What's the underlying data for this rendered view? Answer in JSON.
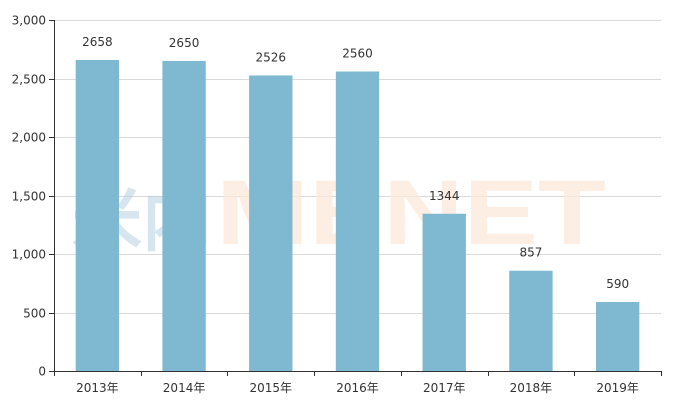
{
  "chart_data": {
    "type": "bar",
    "categories": [
      "2013年",
      "2014年",
      "2015年",
      "2016年",
      "2017年",
      "2018年",
      "2019年"
    ],
    "values": [
      2658,
      2650,
      2526,
      2560,
      1344,
      857,
      590
    ],
    "ylim": [
      0,
      3000
    ],
    "yticks": [
      "0",
      "500",
      "1,000",
      "1,500",
      "2,000",
      "2,500",
      "3,000"
    ],
    "ytick_values": [
      0,
      500,
      1000,
      1500,
      2000,
      2500,
      3000
    ],
    "grid": true,
    "bar_color": "#7fb9d1",
    "grid_color": "#d9d9d9",
    "axis_color": "#333333"
  },
  "watermark": {
    "text": "MENET",
    "prefix_glyphs": "米内",
    "prefix_color": "#b7d0e3",
    "text_color": "#fde9db"
  }
}
